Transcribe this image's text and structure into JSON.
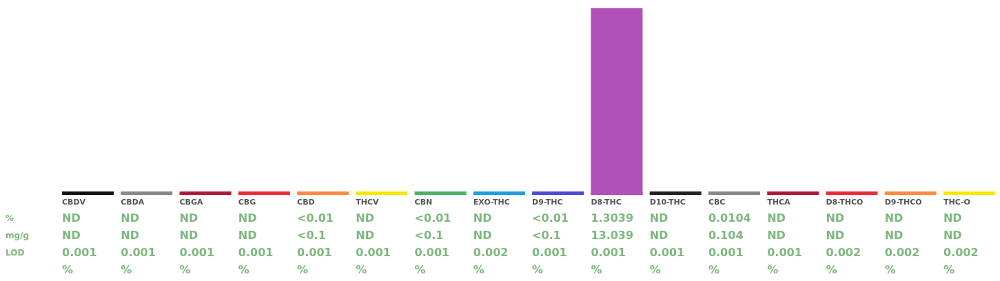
{
  "chart_data": {
    "type": "bar",
    "categories": [
      "CBDV",
      "CBDA",
      "CBGA",
      "CBG",
      "CBD",
      "THCV",
      "CBN",
      "EXO-THC",
      "D9-THC",
      "D8-THC",
      "D10-THC",
      "CBC",
      "THCA",
      "D8-THCO",
      "D9-THCO",
      "THC-O"
    ],
    "values": [
      null,
      null,
      null,
      null,
      null,
      null,
      null,
      null,
      null,
      1.3039,
      null,
      0.0104,
      null,
      null,
      null,
      null
    ],
    "colors": [
      "#111111",
      "#888888",
      "#b0183a",
      "#ee2a3a",
      "#ff8c3a",
      "#f5e800",
      "#4caf6a",
      "#1aa0e0",
      "#4a4ad8",
      "#b050b8",
      "#222222",
      "#888888",
      "#b0183a",
      "#ee2a3a",
      "#ff8c3a",
      "#f5e800"
    ],
    "value_labels": [
      "ND",
      "ND",
      "ND",
      "ND",
      "<0.01",
      "ND",
      "<0.01",
      "ND",
      "<0.01",
      "1.3039",
      "ND",
      "0.0104",
      "ND",
      "ND",
      "ND",
      "ND"
    ],
    "annotations": [
      "%",
      "mg/g",
      "LOD",
      "ND",
      "ND",
      "ND",
      "ND",
      "<0.1",
      "ND",
      "<0.1",
      "ND",
      "<0.1",
      "13.039",
      "ND",
      "0.104",
      "ND",
      "ND",
      "ND",
      "ND",
      "0.001",
      "0.001",
      "0.001",
      "0.001",
      "0.001",
      "0.001",
      "0.001",
      "0.002",
      "0.001",
      "0.001",
      "0.001",
      "0.001",
      "0.001",
      "0.002",
      "0.002",
      "0.002",
      "%",
      "%",
      "%",
      "%",
      "%",
      "%",
      "%",
      "%",
      "%",
      "%",
      "%",
      "%",
      "%",
      "%",
      "%",
      "%"
    ]
  }
}
